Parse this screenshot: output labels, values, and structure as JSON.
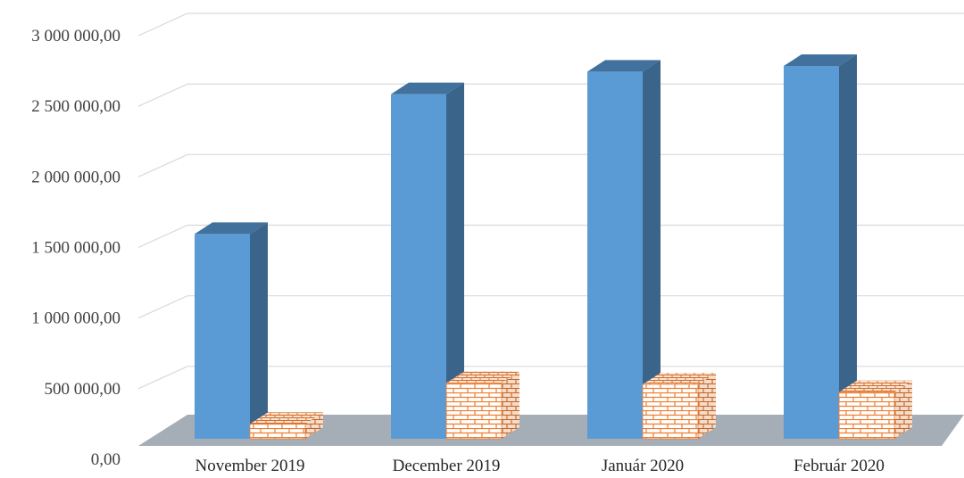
{
  "chart_data": {
    "type": "bar",
    "style": "3d-clustered-column",
    "categories": [
      "November 2019",
      "December 2019",
      "Január 2020",
      "Február 2020"
    ],
    "y_tick_labels": [
      "0,00",
      "500 000,00",
      "1 000 000,00",
      "1 500 000,00",
      "2 000 000,00",
      "2 500 000,00",
      "3 000 000,00"
    ],
    "ylim": [
      0,
      3000000
    ],
    "grid": true,
    "legend": "none",
    "series": [
      {
        "values": [
          1450000,
          2440000,
          2600000,
          2640000
        ],
        "color": "#5B9BD5",
        "fill": "solid"
      },
      {
        "values": [
          105000,
          395000,
          385000,
          330000
        ],
        "color": "#ED7D31",
        "fill": "brick-pattern"
      }
    ],
    "floor_color": "#A5ADB6"
  }
}
